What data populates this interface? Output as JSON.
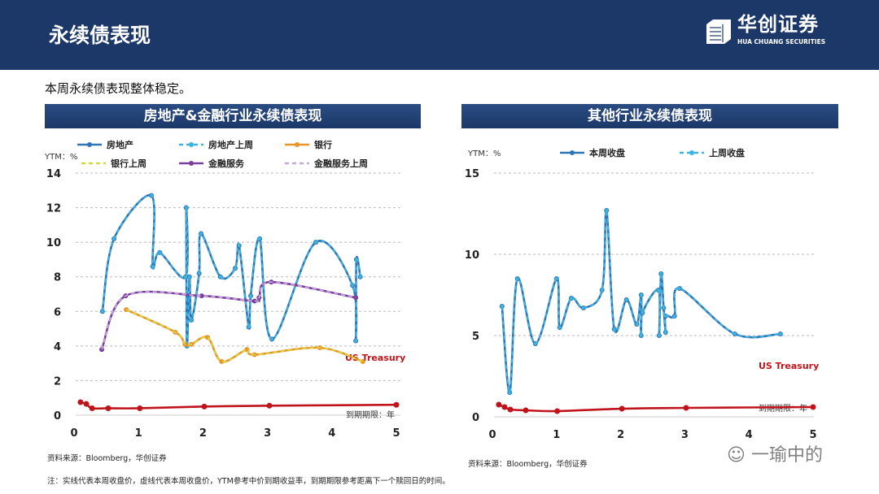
{
  "header": {
    "title": "永续债表现",
    "logo_cn": "华创证券",
    "logo_en": "HUA CHUANG SECURITIES"
  },
  "subtitle": "本周永续债表现整体稳定。",
  "panels": [
    {
      "title": "房地产&金融行业永续债表现"
    },
    {
      "title": "其他行业永续债表现"
    }
  ],
  "notes": {
    "source_left": "资料来源：Bloomberg，华创证券",
    "source_right": "资料来源：Bloomberg，华创证券",
    "footnote": "注：实线代表本周收盘价，虚线代表本周收盘价，YTM参考中价到期收益率，到期期限参考距离下一个赎回日的时间。"
  },
  "watermark": "一瑜中的",
  "chart_data": [
    {
      "type": "line",
      "ylabel": "YTM：%",
      "xlabel": "到期期限：年",
      "xlim": [
        0,
        5
      ],
      "ylim": [
        0,
        14
      ],
      "xticks": [
        "0",
        "1",
        "2",
        "3",
        "4",
        "5"
      ],
      "yticks": [
        "0",
        "2",
        "4",
        "6",
        "8",
        "10",
        "12",
        "14"
      ],
      "annotation": "US Treasury",
      "legend_placement": "top",
      "series": [
        {
          "name": "房地产",
          "color": "#2e75b6",
          "dash": false,
          "points": [
            [
              0.44,
              6.0
            ],
            [
              0.62,
              10.2
            ],
            [
              1.2,
              12.7
            ],
            [
              1.22,
              8.6
            ],
            [
              1.33,
              9.4
            ],
            [
              1.73,
              8.0
            ],
            [
              1.74,
              12.0
            ],
            [
              1.75,
              4.0
            ],
            [
              1.79,
              8.0
            ],
            [
              1.82,
              5.5
            ],
            [
              1.94,
              8.2
            ],
            [
              1.97,
              10.5
            ],
            [
              2.27,
              8.0
            ],
            [
              2.5,
              8.5
            ],
            [
              2.56,
              9.8
            ],
            [
              2.71,
              5.1
            ],
            [
              2.74,
              6.9
            ],
            [
              2.88,
              10.2
            ],
            [
              3.07,
              4.4
            ],
            [
              3.75,
              10.0
            ],
            [
              4.32,
              7.5
            ],
            [
              4.37,
              4.3
            ],
            [
              4.38,
              9.0
            ],
            [
              4.44,
              8.0
            ]
          ]
        },
        {
          "name": "房地产上周",
          "color": "#3cb4e0",
          "dash": true,
          "points": [
            [
              0.44,
              6.0
            ],
            [
              0.62,
              10.2
            ],
            [
              1.2,
              12.7
            ],
            [
              1.22,
              8.6
            ],
            [
              1.33,
              9.4
            ],
            [
              1.73,
              8.0
            ],
            [
              1.74,
              12.0
            ],
            [
              1.75,
              4.0
            ],
            [
              1.79,
              8.0
            ],
            [
              1.82,
              5.5
            ],
            [
              1.94,
              8.2
            ],
            [
              1.97,
              10.5
            ],
            [
              2.27,
              8.0
            ],
            [
              2.5,
              8.5
            ],
            [
              2.56,
              9.8
            ],
            [
              2.71,
              5.1
            ],
            [
              2.74,
              6.9
            ],
            [
              2.88,
              10.2
            ],
            [
              3.07,
              4.4
            ],
            [
              3.75,
              10.0
            ],
            [
              4.32,
              7.5
            ],
            [
              4.37,
              4.3
            ],
            [
              4.38,
              9.0
            ],
            [
              4.44,
              8.0
            ]
          ]
        },
        {
          "name": "银行",
          "color": "#e8962a",
          "dash": false,
          "points": [
            [
              0.81,
              6.1
            ],
            [
              1.57,
              4.8
            ],
            [
              1.72,
              4.1
            ],
            [
              1.82,
              4.1
            ],
            [
              2.07,
              4.5
            ],
            [
              2.29,
              3.1
            ],
            [
              2.68,
              3.8
            ],
            [
              2.8,
              3.5
            ],
            [
              3.81,
              3.9
            ],
            [
              4.48,
              3.1
            ]
          ]
        },
        {
          "name": "银行上周",
          "color": "#d8d83a",
          "dash": true,
          "points": [
            [
              0.81,
              6.1
            ],
            [
              1.57,
              4.8
            ],
            [
              1.72,
              4.1
            ],
            [
              1.82,
              4.1
            ],
            [
              2.07,
              4.5
            ],
            [
              2.29,
              3.1
            ],
            [
              2.68,
              3.8
            ],
            [
              2.8,
              3.5
            ],
            [
              3.81,
              3.9
            ],
            [
              4.48,
              3.1
            ]
          ]
        },
        {
          "name": "金融服务",
          "color": "#7a3ea0",
          "dash": false,
          "points": [
            [
              0.43,
              3.8
            ],
            [
              0.8,
              6.9
            ],
            [
              1.98,
              6.9
            ],
            [
              2.8,
              6.6
            ],
            [
              2.87,
              6.8
            ],
            [
              3.06,
              7.7
            ],
            [
              4.37,
              6.8
            ]
          ]
        },
        {
          "name": "金融服务上周",
          "color": "#c8a8d8",
          "dash": true,
          "points": [
            [
              0.43,
              3.8
            ],
            [
              0.8,
              6.9
            ],
            [
              1.98,
              6.9
            ],
            [
              2.8,
              6.6
            ],
            [
              2.87,
              6.8
            ],
            [
              3.06,
              7.7
            ],
            [
              4.37,
              6.8
            ]
          ]
        },
        {
          "name": "US Treasury",
          "color": "#c0141c",
          "dash": false,
          "legend": false,
          "points": [
            [
              0.1,
              0.75
            ],
            [
              0.19,
              0.65
            ],
            [
              0.28,
              0.4
            ],
            [
              0.53,
              0.4
            ],
            [
              1.02,
              0.4
            ],
            [
              2.02,
              0.5
            ],
            [
              3.03,
              0.55
            ],
            [
              5.0,
              0.6
            ]
          ]
        }
      ]
    },
    {
      "type": "line",
      "ylabel": "YTM：%",
      "xlabel": "到期期限：年",
      "xlim": [
        0,
        5
      ],
      "ylim": [
        0,
        15
      ],
      "xticks": [
        "0",
        "1",
        "2",
        "3",
        "4",
        "5"
      ],
      "yticks": [
        "0",
        "5",
        "10",
        "15"
      ],
      "annotation": "US Treasury",
      "legend_placement": "top",
      "series": [
        {
          "name": "本周收盘",
          "color": "#2e75b6",
          "dash": false,
          "points": [
            [
              0.15,
              6.8
            ],
            [
              0.27,
              1.5
            ],
            [
              0.39,
              8.5
            ],
            [
              0.67,
              4.5
            ],
            [
              1.0,
              8.5
            ],
            [
              1.05,
              5.5
            ],
            [
              1.23,
              7.3
            ],
            [
              1.42,
              6.7
            ],
            [
              1.71,
              7.8
            ],
            [
              1.78,
              12.7
            ],
            [
              1.9,
              5.4
            ],
            [
              2.09,
              7.2
            ],
            [
              2.25,
              5.7
            ],
            [
              2.32,
              7.5
            ],
            [
              2.32,
              5.0
            ],
            [
              2.34,
              6.4
            ],
            [
              2.59,
              7.8
            ],
            [
              2.6,
              5.0
            ],
            [
              2.63,
              8.8
            ],
            [
              2.67,
              6.7
            ],
            [
              2.7,
              5.2
            ],
            [
              2.7,
              6.2
            ],
            [
              2.84,
              6.2
            ],
            [
              2.92,
              7.9
            ],
            [
              3.78,
              5.1
            ],
            [
              4.49,
              5.1
            ]
          ]
        },
        {
          "name": "上周收盘",
          "color": "#3cb4e0",
          "dash": true,
          "points": [
            [
              0.15,
              6.8
            ],
            [
              0.27,
              1.5
            ],
            [
              0.39,
              8.5
            ],
            [
              0.67,
              4.5
            ],
            [
              1.0,
              8.5
            ],
            [
              1.05,
              5.5
            ],
            [
              1.23,
              7.3
            ],
            [
              1.42,
              6.7
            ],
            [
              1.71,
              7.8
            ],
            [
              1.78,
              12.7
            ],
            [
              1.9,
              5.4
            ],
            [
              2.09,
              7.2
            ],
            [
              2.25,
              5.7
            ],
            [
              2.32,
              7.5
            ],
            [
              2.32,
              5.0
            ],
            [
              2.34,
              6.4
            ],
            [
              2.59,
              7.8
            ],
            [
              2.6,
              5.0
            ],
            [
              2.63,
              8.8
            ],
            [
              2.67,
              6.7
            ],
            [
              2.7,
              5.2
            ],
            [
              2.7,
              6.2
            ],
            [
              2.84,
              6.2
            ],
            [
              2.92,
              7.9
            ],
            [
              3.78,
              5.1
            ],
            [
              4.49,
              5.1
            ]
          ]
        },
        {
          "name": "US Treasury",
          "color": "#c0141c",
          "dash": false,
          "legend": false,
          "points": [
            [
              0.1,
              0.75
            ],
            [
              0.19,
              0.6
            ],
            [
              0.28,
              0.45
            ],
            [
              0.52,
              0.4
            ],
            [
              1.01,
              0.35
            ],
            [
              2.02,
              0.5
            ],
            [
              3.02,
              0.55
            ],
            [
              5.0,
              0.6
            ]
          ]
        }
      ]
    }
  ]
}
